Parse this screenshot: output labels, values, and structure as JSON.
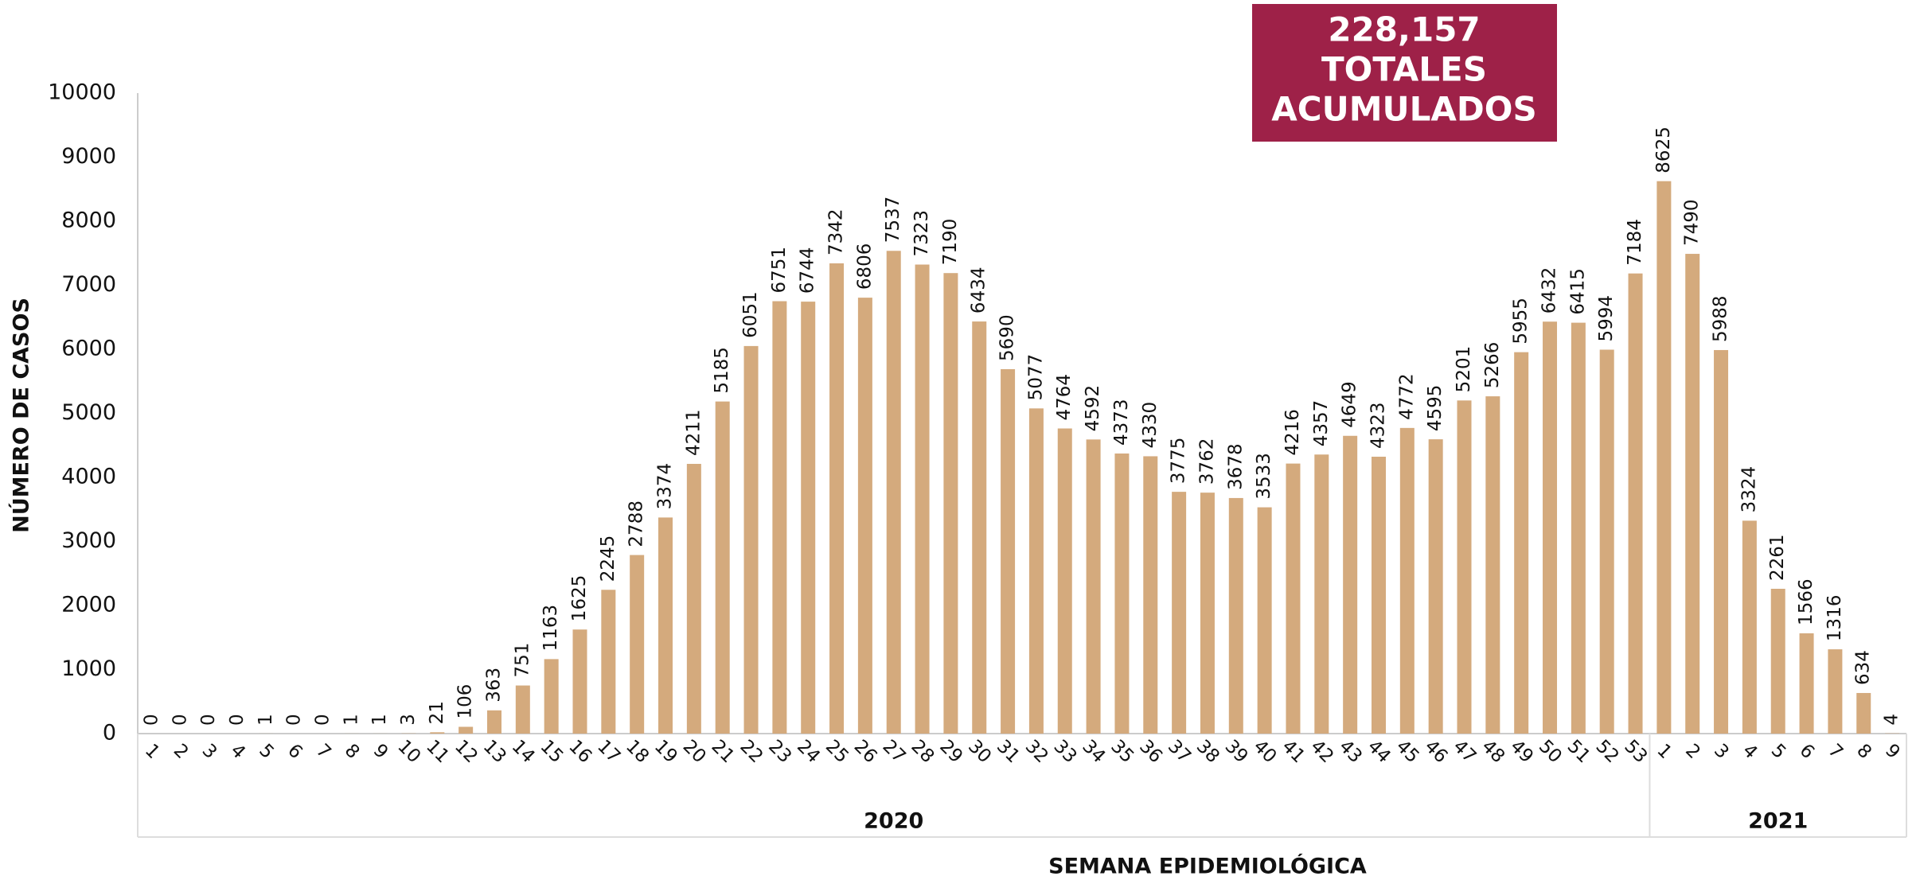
{
  "chart_data": {
    "type": "bar",
    "annotation": [
      "228,157",
      "TOTALES",
      "ACUMULADOS"
    ],
    "annotation_color": "#9e2148",
    "ylabel": "NÚMERO DE CASOS",
    "xlabel": "SEMANA EPIDEMIOLÓGICA",
    "groups": [
      "2020",
      "2021"
    ],
    "categories": [
      "1",
      "2",
      "3",
      "4",
      "5",
      "6",
      "7",
      "8",
      "9",
      "10",
      "11",
      "12",
      "13",
      "14",
      "15",
      "16",
      "17",
      "18",
      "19",
      "20",
      "21",
      "22",
      "23",
      "24",
      "25",
      "26",
      "27",
      "28",
      "29",
      "30",
      "31",
      "32",
      "33",
      "34",
      "35",
      "36",
      "37",
      "38",
      "39",
      "40",
      "41",
      "42",
      "43",
      "44",
      "45",
      "46",
      "47",
      "48",
      "49",
      "50",
      "51",
      "52",
      "53",
      "1",
      "2",
      "3",
      "4",
      "5",
      "6",
      "7",
      "8",
      "9"
    ],
    "values": [
      0,
      0,
      0,
      0,
      1,
      0,
      0,
      1,
      1,
      3,
      21,
      106,
      363,
      751,
      1163,
      1625,
      2245,
      2788,
      3374,
      4211,
      5185,
      6051,
      6751,
      6744,
      7342,
      6806,
      7537,
      7323,
      7190,
      6434,
      5690,
      5077,
      4764,
      4592,
      4373,
      4330,
      3775,
      3762,
      3678,
      3533,
      4216,
      4357,
      4649,
      4323,
      4772,
      4595,
      5201,
      5266,
      5955,
      6432,
      6415,
      5994,
      7184,
      8625,
      7490,
      5988,
      3324,
      2261,
      1566,
      1316,
      634,
      4
    ],
    "color": "#d4aa7d",
    "ylim": [
      0,
      10000
    ],
    "yticks": [
      0,
      1000,
      2000,
      3000,
      4000,
      5000,
      6000,
      7000,
      8000,
      9000,
      10000
    ],
    "grid": false
  }
}
